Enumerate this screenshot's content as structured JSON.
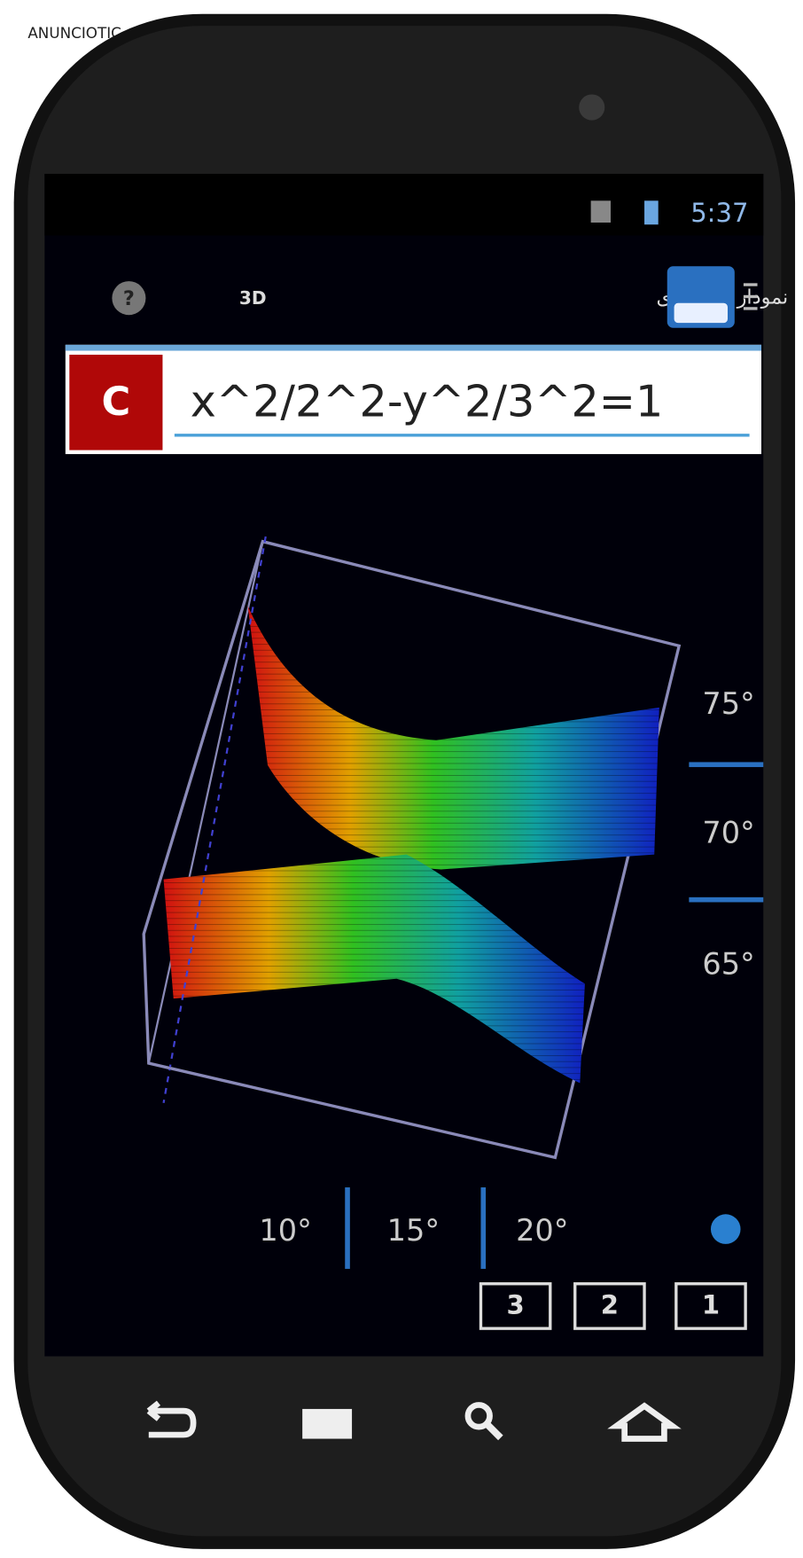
{
  "watermark": "ANUNCIOTIC",
  "status_bar": {
    "time": "5:37"
  },
  "toolbar": {
    "title": "نمودار سه بعدی",
    "mode": "3D"
  },
  "input": {
    "clear_button": "C",
    "expression": "x^2/2^2-y^2/3^2=1"
  },
  "vertical_angles": [
    "75°",
    "70°",
    "65°"
  ],
  "horizontal_angles": [
    "10°",
    "15°",
    "20°"
  ],
  "view_buttons": [
    "3",
    "2",
    "1"
  ]
}
